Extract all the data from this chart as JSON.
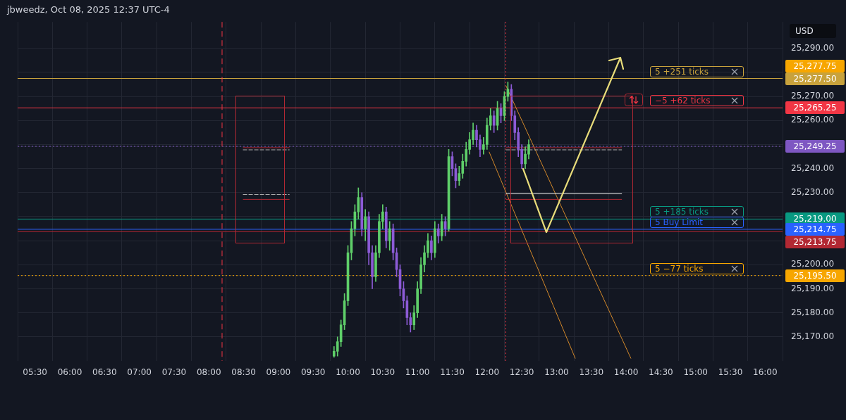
{
  "chart_data": {
    "type": "candlestick",
    "title": "jbweedz, Oct 08, 2025 12:37 UTC-4",
    "annotations": [
      "USD",
      "25,213.75",
      "25,277.75"
    ],
    "x": [
      9.8,
      9.85,
      9.9,
      9.95,
      10,
      10.05,
      10.1,
      10.15,
      10.2,
      10.25,
      10.3,
      10.35,
      10.4,
      10.45,
      10.5,
      10.55,
      10.6,
      10.65,
      10.7,
      10.75,
      10.8,
      10.85,
      10.9,
      10.95,
      11,
      11.05,
      11.1,
      11.15,
      11.2,
      11.25,
      11.3,
      11.35,
      11.4,
      11.45,
      11.5,
      11.55,
      11.6,
      11.65,
      11.7,
      11.75,
      11.8,
      11.85,
      11.9,
      11.95,
      12,
      12.05,
      12.1,
      12.15,
      12.2,
      12.25,
      12.3,
      12.35,
      12.4,
      12.45,
      12.5,
      12.55,
      12.6
    ],
    "ohlc": [
      [
        25162,
        25166,
        25161.5,
        25164
      ],
      [
        25164,
        25170,
        25162,
        25168
      ],
      [
        25168,
        25177,
        25166,
        25175
      ],
      [
        25175,
        25188,
        25173,
        25185
      ],
      [
        25185,
        25208,
        25183,
        25205
      ],
      [
        25205,
        25218,
        25202,
        25215
      ],
      [
        25215,
        25225,
        25212,
        25222
      ],
      [
        25222,
        25232,
        25219,
        25228
      ],
      [
        25228,
        25230,
        25212,
        25215
      ],
      [
        25215,
        25223,
        25210,
        25220
      ],
      [
        25220,
        25222,
        25200,
        25205
      ],
      [
        25205,
        25208,
        25190,
        25195
      ],
      [
        25195,
        25208,
        25193,
        25205
      ],
      [
        25205,
        25221,
        25203,
        25218
      ],
      [
        25218,
        25225,
        25215,
        25222
      ],
      [
        25222,
        25224,
        25207,
        25210
      ],
      [
        25210,
        25218,
        25206,
        25215
      ],
      [
        25215,
        25217,
        25202,
        25205
      ],
      [
        25205,
        25207,
        25195,
        25198
      ],
      [
        25198,
        25200,
        25187,
        25190
      ],
      [
        25190,
        25193,
        25182,
        25185
      ],
      [
        25185,
        25187,
        25175,
        25178
      ],
      [
        25178,
        25180,
        25172,
        25175
      ],
      [
        25175,
        25183,
        25173,
        25180
      ],
      [
        25180,
        25193,
        25178,
        25190
      ],
      [
        25190,
        25203,
        25188,
        25200
      ],
      [
        25200,
        25208,
        25197,
        25205
      ],
      [
        25205,
        25213,
        25203,
        25210
      ],
      [
        25210,
        25212,
        25202,
        25205
      ],
      [
        25205,
        25218,
        25203,
        25215
      ],
      [
        25215,
        25217,
        25209,
        25212
      ],
      [
        25212,
        25221,
        25210,
        25218
      ],
      [
        25218,
        25220,
        25212,
        25215
      ],
      [
        25215,
        25248,
        25214,
        25245
      ],
      [
        25245,
        25247,
        25237,
        25240
      ],
      [
        25240,
        25242,
        25232,
        25235
      ],
      [
        25235,
        25241,
        25233,
        25238
      ],
      [
        25238,
        25246,
        25236,
        25243
      ],
      [
        25243,
        25251,
        25241,
        25248
      ],
      [
        25248,
        25255,
        25246,
        25252
      ],
      [
        25252,
        25259,
        25250,
        25256
      ],
      [
        25256,
        25258,
        25249,
        25252
      ],
      [
        25252,
        25254,
        25245,
        25248
      ],
      [
        25248,
        25253,
        25246,
        25250
      ],
      [
        25250,
        25261,
        25248,
        25258
      ],
      [
        25258,
        25265,
        25256,
        25262
      ],
      [
        25262,
        25264,
        25255,
        25258
      ],
      [
        25258,
        25268,
        25256,
        25265
      ],
      [
        25265,
        25267,
        25259,
        25262
      ],
      [
        25262,
        25272,
        25260,
        25270
      ],
      [
        25270,
        25276,
        25268,
        25273
      ],
      [
        25273,
        25275,
        25260,
        25262
      ],
      [
        25262,
        25264,
        25252,
        25255
      ],
      [
        25255,
        25257,
        25245,
        25248
      ],
      [
        25248,
        25250,
        25240,
        25242
      ],
      [
        25242,
        25249,
        25240,
        25246
      ],
      [
        25246,
        25252,
        25244,
        25250
      ]
    ],
    "colors": [
      "#5fcf6a",
      "#5fcf6a",
      "#5fcf6a",
      "#5fcf6a",
      "#5fcf6a",
      "#5fcf6a",
      "#5fcf6a",
      "#5fcf6a",
      "#8c5bd6",
      "#5fcf6a",
      "#8c5bd6",
      "#8c5bd6",
      "#5fcf6a",
      "#5fcf6a",
      "#5fcf6a",
      "#8c5bd6",
      "#5fcf6a",
      "#8c5bd6",
      "#8c5bd6",
      "#8c5bd6",
      "#8c5bd6",
      "#8c5bd6",
      "#8c5bd6",
      "#5fcf6a",
      "#5fcf6a",
      "#5fcf6a",
      "#5fcf6a",
      "#5fcf6a",
      "#8c5bd6",
      "#5fcf6a",
      "#8c5bd6",
      "#5fcf6a",
      "#8c5bd6",
      "#5fcf6a",
      "#8c5bd6",
      "#8c5bd6",
      "#5fcf6a",
      "#5fcf6a",
      "#5fcf6a",
      "#5fcf6a",
      "#5fcf6a",
      "#8c5bd6",
      "#8c5bd6",
      "#5fcf6a",
      "#5fcf6a",
      "#5fcf6a",
      "#8c5bd6",
      "#5fcf6a",
      "#8c5bd6",
      "#5fcf6a",
      "#5fcf6a",
      "#8c5bd6",
      "#8c5bd6",
      "#8c5bd6",
      "#8c5bd6",
      "#5fcf6a",
      "#5fcf6a"
    ],
    "series": [
      {
        "type": "line",
        "color": "#b22833",
        "x": [
          8.49,
          9.16
        ],
        "values": [
          25248.7,
          25248.7
        ]
      },
      {
        "type": "line",
        "color": "#b22833",
        "x": [
          8.49,
          9.16
        ],
        "values": [
          25227.2,
          25227.2
        ]
      },
      {
        "type": "line",
        "color": "#b0b0b0",
        "line_style": "dashed",
        "x": [
          8.49,
          9.16
        ],
        "values": [
          25247.8,
          25247.8
        ]
      },
      {
        "type": "line",
        "color": "#b0b0b0",
        "line_style": "dashed",
        "x": [
          8.49,
          9.16
        ],
        "values": [
          25229.2,
          25229.2
        ]
      },
      {
        "type": "line",
        "color": "#b22833",
        "x": [
          12.27,
          13.94
        ],
        "values": [
          25248.7,
          25248.7
        ]
      },
      {
        "type": "line",
        "color": "#b22833",
        "x": [
          12.27,
          13.94
        ],
        "values": [
          25227.2,
          25227.2
        ]
      },
      {
        "type": "line",
        "color": "#b0b0b0",
        "line_style": "dashed",
        "x": [
          12.27,
          13.94
        ],
        "values": [
          25247.8,
          25247.8
        ]
      },
      {
        "type": "line",
        "color": "#e6e6e6",
        "x": [
          12.27,
          13.94
        ],
        "values": [
          25229.5,
          25229.5
        ]
      },
      {
        "type": "line",
        "color": "#d4892a",
        "x": [
          12.03,
          13.27
        ],
        "values": [
          25247,
          25161
        ]
      },
      {
        "type": "line",
        "color": "#d4892a",
        "x": [
          12.27,
          14.07
        ],
        "values": [
          25274.6,
          25161
        ]
      }
    ],
    "ref_lines": [
      {
        "axis": "y",
        "value": 25277.5,
        "label": "5 +251 ticks",
        "color": "#c8a23c"
      },
      {
        "axis": "y",
        "value": 25265.25,
        "label": "−5 +62 ticks",
        "color": "#f23645"
      },
      {
        "axis": "y",
        "value": 25249.25,
        "color": "#7e57c2",
        "line_style": "dotted"
      },
      {
        "axis": "y",
        "value": 25219,
        "label": "5 +185 ticks",
        "color": "#089981"
      },
      {
        "axis": "y",
        "value": 25214.75,
        "label": "5 Buy Limit",
        "color": "#2962ff"
      },
      {
        "axis": "y",
        "value": 25213.75,
        "color": "#b22833"
      },
      {
        "axis": "y",
        "value": 25195.5,
        "label": "5 −77 ticks",
        "color": "#f7a600",
        "line_style": "dotted"
      },
      {
        "axis": "x",
        "value": 8.19,
        "color": "#f23645",
        "line_style": "dashed"
      },
      {
        "axis": "x",
        "value": 12.27,
        "color": "#f23645",
        "line_style": "dotted"
      }
    ],
    "xlim": [
      5.5,
      16
    ],
    "xticks": [
      {
        "value": 5.5,
        "label": "05:30"
      },
      {
        "value": 6,
        "label": "06:00"
      },
      {
        "value": 6.5,
        "label": "06:30"
      },
      {
        "value": 7,
        "label": "07:00"
      },
      {
        "value": 7.5,
        "label": "07:30"
      },
      {
        "value": 8,
        "label": "08:00"
      },
      {
        "value": 8.5,
        "label": "08:30"
      },
      {
        "value": 9,
        "label": "09:00"
      },
      {
        "value": 9.5,
        "label": "09:30"
      },
      {
        "value": 10,
        "label": "10:00"
      },
      {
        "value": 10.5,
        "label": "10:30"
      },
      {
        "value": 11,
        "label": "11:00"
      },
      {
        "value": 11.5,
        "label": "11:30"
      },
      {
        "value": 12,
        "label": "12:00"
      },
      {
        "value": 12.5,
        "label": "12:30"
      },
      {
        "value": 13,
        "label": "13:00"
      },
      {
        "value": 13.5,
        "label": "13:30"
      },
      {
        "value": 14,
        "label": "14:00"
      },
      {
        "value": 14.5,
        "label": "14:30"
      },
      {
        "value": 15,
        "label": "15:00"
      },
      {
        "value": 15.5,
        "label": "15:30"
      },
      {
        "value": 16,
        "label": "16:00"
      }
    ],
    "ylim": [
      25160,
      25301
    ],
    "yticks": [
      {
        "value": 25170,
        "label": "25,170.00"
      },
      {
        "value": 25180,
        "label": "25,180.00"
      },
      {
        "value": 25190,
        "label": "25,190.00"
      },
      {
        "value": 25195.5,
        "label": "25,195.50"
      },
      {
        "value": 25200,
        "label": "25,200.00"
      },
      {
        "value": 25210,
        "label": null
      },
      {
        "value": 25214.75,
        "label": "25,214.75"
      },
      {
        "value": 25219,
        "label": "25,219.00"
      },
      {
        "value": 25220,
        "label": null
      },
      {
        "value": 25230,
        "label": "25,230.00"
      },
      {
        "value": 25240,
        "label": "25,240.00"
      },
      {
        "value": 25249.25,
        "label": "25,249.25"
      },
      {
        "value": 25250,
        "label": null
      },
      {
        "value": 25260,
        "label": "25,260.00"
      },
      {
        "value": 25265.25,
        "label": "25,265.25"
      },
      {
        "value": 25270,
        "label": "25,270.00"
      },
      {
        "value": 25277.5,
        "label": "25,277.50"
      },
      {
        "value": 25280,
        "label": null
      },
      {
        "value": 25290,
        "label": "25,290.00"
      }
    ],
    "grid": true
  }
}
